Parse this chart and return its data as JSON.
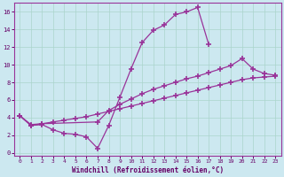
{
  "xlabel": "Windchill (Refroidissement éolien,°C)",
  "bg_color": "#cce8f0",
  "line_color": "#993399",
  "xlim": [
    -0.5,
    23.5
  ],
  "ylim": [
    -0.3,
    17.0
  ],
  "xticks": [
    0,
    1,
    2,
    3,
    4,
    5,
    6,
    7,
    8,
    9,
    10,
    11,
    12,
    13,
    14,
    15,
    16,
    17,
    18,
    19,
    20,
    21,
    22,
    23
  ],
  "yticks": [
    0,
    2,
    4,
    6,
    8,
    10,
    12,
    14,
    16
  ],
  "c1x": [
    0,
    1,
    2,
    3,
    4,
    5,
    6,
    7,
    8,
    9,
    10,
    11,
    12,
    13,
    14,
    15,
    16,
    17
  ],
  "c1y": [
    4.2,
    3.1,
    3.2,
    2.6,
    2.2,
    2.1,
    1.8,
    0.5,
    3.1,
    6.3,
    9.5,
    12.5,
    13.9,
    14.5,
    15.7,
    16.0,
    16.5,
    12.3
  ],
  "c2x": [
    0,
    1,
    2,
    7,
    8,
    9,
    10,
    11,
    12,
    13,
    14,
    15,
    16,
    17,
    18,
    19,
    20,
    21,
    22,
    23
  ],
  "c2y": [
    4.2,
    3.2,
    3.3,
    3.5,
    4.8,
    5.5,
    6.1,
    6.7,
    7.2,
    7.6,
    8.0,
    8.4,
    8.7,
    9.1,
    9.5,
    9.9,
    10.7,
    9.5,
    9.0,
    8.8
  ],
  "c3x": [
    0,
    1,
    2,
    3,
    4,
    5,
    6,
    7,
    8,
    9,
    10,
    11,
    12,
    13,
    14,
    15,
    16,
    17,
    18,
    19,
    20,
    21,
    22,
    23
  ],
  "c3y": [
    4.2,
    3.1,
    3.3,
    3.5,
    3.7,
    3.9,
    4.1,
    4.4,
    4.7,
    5.0,
    5.3,
    5.6,
    5.9,
    6.2,
    6.5,
    6.8,
    7.1,
    7.4,
    7.7,
    8.0,
    8.3,
    8.5,
    8.6,
    8.7
  ]
}
